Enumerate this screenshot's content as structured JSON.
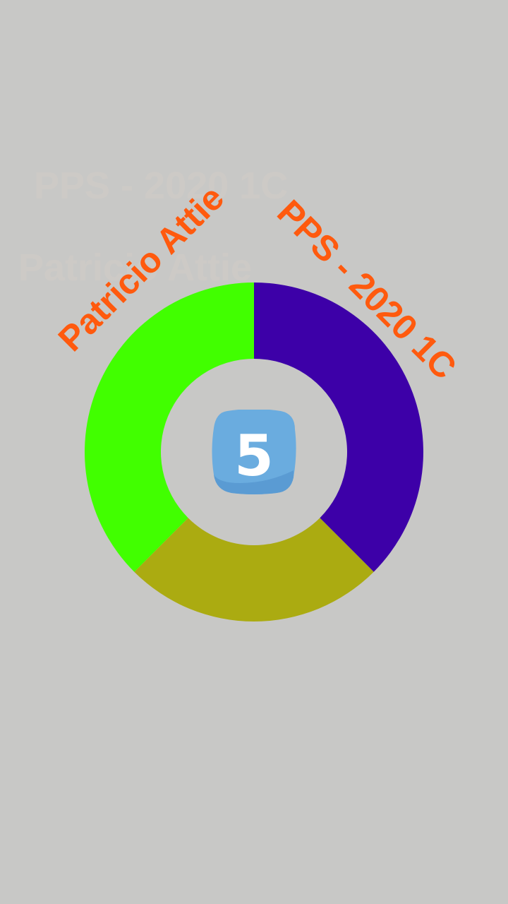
{
  "splash": {
    "title": "PPS - 2020 1C",
    "author": "Patricio Attie",
    "badge_number": "5",
    "colors": {
      "background": "#c8c8c6",
      "text_accent": "#ff5a0e",
      "ghost_text": "#cfcbc6",
      "badge_bg": "#6aacdf",
      "badge_shade": "#5a9bd3",
      "badge_text": "#ffffff"
    },
    "ring_segments": [
      {
        "color": "#3d00a8",
        "fraction": 0.375
      },
      {
        "color": "#abab11",
        "fraction": 0.25
      },
      {
        "color": "#41ff00",
        "fraction": 0.375
      }
    ]
  }
}
